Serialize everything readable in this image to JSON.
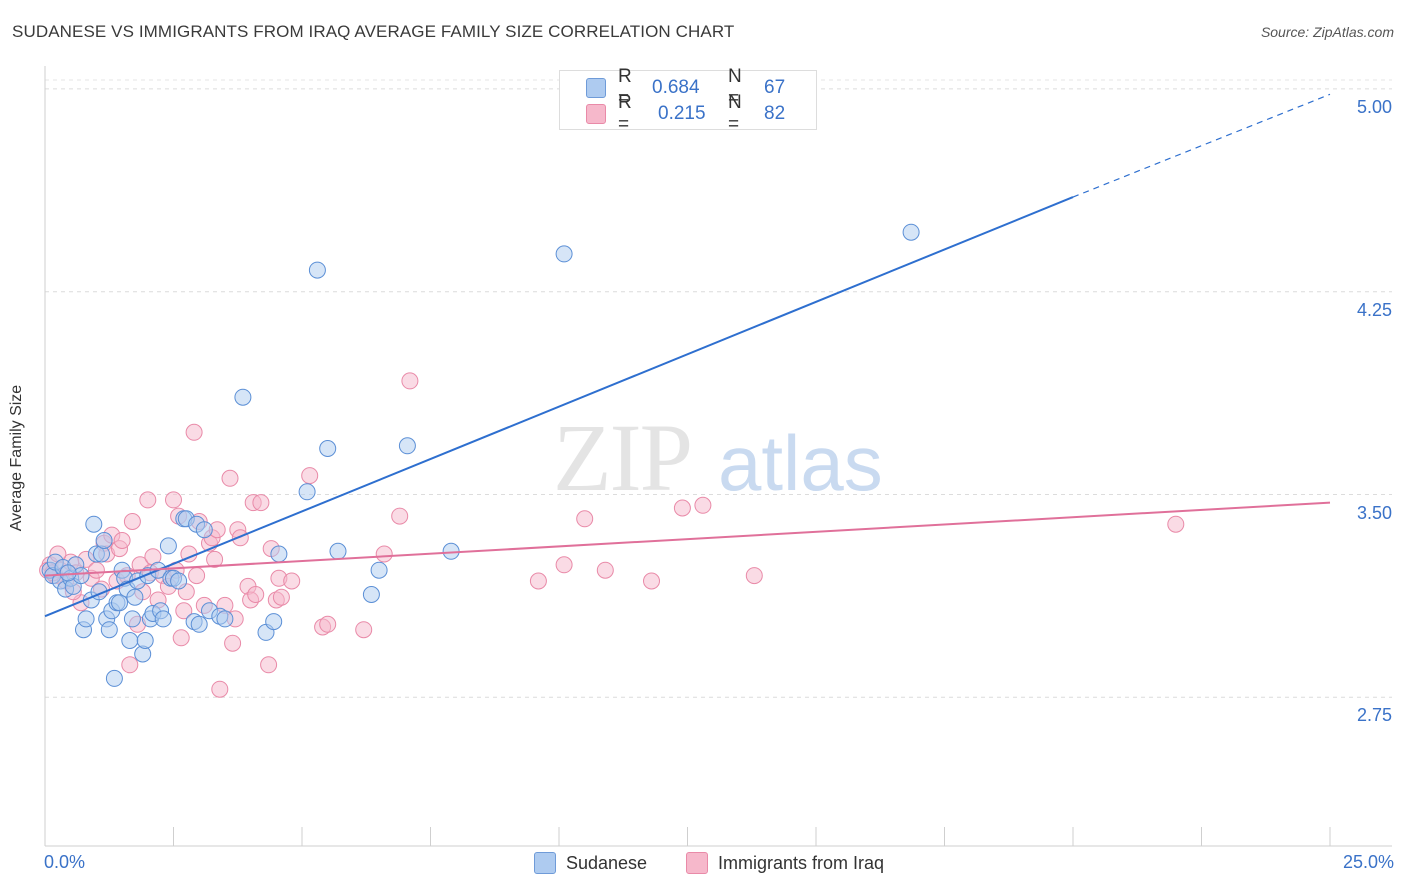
{
  "title": "SUDANESE VS IMMIGRANTS FROM IRAQ AVERAGE FAMILY SIZE CORRELATION CHART",
  "source": "Source: ZipAtlas.com",
  "legend_top": {
    "rows": [
      {
        "r_label": "R =",
        "r_value": "0.684",
        "n_label": "N =",
        "n_value": "67",
        "color": "#aecbf0"
      },
      {
        "r_label": "R =",
        "r_value": "0.215",
        "n_label": "N =",
        "n_value": "82",
        "color": "#f6b8cb"
      }
    ]
  },
  "watermark": {
    "zip": "ZIP",
    "atlas": "atlas"
  },
  "chart_data": {
    "type": "scatter",
    "title": "SUDANESE VS IMMIGRANTS FROM IRAQ AVERAGE FAMILY SIZE CORRELATION CHART",
    "xlabel": "",
    "ylabel": "Average Family Size",
    "xlim": [
      0,
      25
    ],
    "ylim": [
      2.2,
      5.07
    ],
    "x_tick_labels": [
      "0.0%",
      "25.0%"
    ],
    "y_ticks": [
      2.75,
      3.5,
      4.25,
      5.0
    ],
    "y_tick_labels": [
      "2.75",
      "3.50",
      "4.25",
      "5.00"
    ],
    "grid": "horizontal dashed",
    "legend_position": "top-center",
    "series": [
      {
        "name": "Sudanese",
        "color": "#5b8fd6",
        "fill": "#aecbf0",
        "trend": {
          "x0": 0,
          "y0": 3.05,
          "x1": 20,
          "y1": 4.6,
          "dash_to_x": 25,
          "dash_to_y": 4.98,
          "line_color": "#2e6fcf"
        },
        "points": [
          [
            0.1,
            3.22
          ],
          [
            0.15,
            3.2
          ],
          [
            0.2,
            3.25
          ],
          [
            0.3,
            3.18
          ],
          [
            0.35,
            3.23
          ],
          [
            0.4,
            3.15
          ],
          [
            0.5,
            3.19
          ],
          [
            0.55,
            3.16
          ],
          [
            0.6,
            3.24
          ],
          [
            0.7,
            3.2
          ],
          [
            0.75,
            3.0
          ],
          [
            0.8,
            3.04
          ],
          [
            0.9,
            3.11
          ],
          [
            0.95,
            3.39
          ],
          [
            1.0,
            3.28
          ],
          [
            1.05,
            3.14
          ],
          [
            1.1,
            3.28
          ],
          [
            1.2,
            3.04
          ],
          [
            1.25,
            3.0
          ],
          [
            1.3,
            3.07
          ],
          [
            1.35,
            2.82
          ],
          [
            1.4,
            3.1
          ],
          [
            1.45,
            3.1
          ],
          [
            1.5,
            3.22
          ],
          [
            1.55,
            3.19
          ],
          [
            1.6,
            3.15
          ],
          [
            1.65,
            2.96
          ],
          [
            1.7,
            3.04
          ],
          [
            1.75,
            3.12
          ],
          [
            1.8,
            3.18
          ],
          [
            1.9,
            2.91
          ],
          [
            1.95,
            2.96
          ],
          [
            2.0,
            3.2
          ],
          [
            2.05,
            3.04
          ],
          [
            2.1,
            3.06
          ],
          [
            2.2,
            3.22
          ],
          [
            2.25,
            3.07
          ],
          [
            2.3,
            3.04
          ],
          [
            2.4,
            3.31
          ],
          [
            2.45,
            3.19
          ],
          [
            2.5,
            3.19
          ],
          [
            2.6,
            3.18
          ],
          [
            2.7,
            3.41
          ],
          [
            2.75,
            3.41
          ],
          [
            2.9,
            3.03
          ],
          [
            2.95,
            3.39
          ],
          [
            3.1,
            3.37
          ],
          [
            3.2,
            3.07
          ],
          [
            3.4,
            3.05
          ],
          [
            3.5,
            3.04
          ],
          [
            3.85,
            3.86
          ],
          [
            4.3,
            2.99
          ],
          [
            4.45,
            3.03
          ],
          [
            4.55,
            3.28
          ],
          [
            5.1,
            3.51
          ],
          [
            5.3,
            4.33
          ],
          [
            5.5,
            3.67
          ],
          [
            5.7,
            3.29
          ],
          [
            6.35,
            3.13
          ],
          [
            6.5,
            3.22
          ],
          [
            7.05,
            3.68
          ],
          [
            7.9,
            3.29
          ],
          [
            10.1,
            4.39
          ],
          [
            16.85,
            4.47
          ],
          [
            3.0,
            3.02
          ],
          [
            1.15,
            3.33
          ],
          [
            0.45,
            3.21
          ]
        ]
      },
      {
        "name": "Immigrants from Iraq",
        "color": "#e98aa8",
        "fill": "#f6b8cb",
        "trend": {
          "x0": 0,
          "y0": 3.2,
          "x1": 25,
          "y1": 3.47,
          "line_color": "#e0709a"
        },
        "points": [
          [
            0.1,
            3.24
          ],
          [
            0.2,
            3.2
          ],
          [
            0.3,
            3.22
          ],
          [
            0.4,
            3.18
          ],
          [
            0.5,
            3.25
          ],
          [
            0.6,
            3.21
          ],
          [
            0.7,
            3.1
          ],
          [
            0.8,
            3.26
          ],
          [
            0.9,
            3.19
          ],
          [
            1.0,
            3.22
          ],
          [
            1.1,
            3.15
          ],
          [
            1.15,
            3.32
          ],
          [
            1.2,
            3.28
          ],
          [
            1.3,
            3.35
          ],
          [
            1.4,
            3.18
          ],
          [
            1.45,
            3.3
          ],
          [
            1.5,
            3.33
          ],
          [
            1.6,
            3.2
          ],
          [
            1.65,
            2.87
          ],
          [
            1.7,
            3.4
          ],
          [
            1.8,
            3.02
          ],
          [
            1.85,
            3.24
          ],
          [
            1.9,
            3.14
          ],
          [
            2.0,
            3.48
          ],
          [
            2.05,
            3.21
          ],
          [
            2.1,
            3.27
          ],
          [
            2.2,
            3.11
          ],
          [
            2.3,
            3.2
          ],
          [
            2.4,
            3.16
          ],
          [
            2.5,
            3.48
          ],
          [
            2.55,
            3.22
          ],
          [
            2.6,
            3.42
          ],
          [
            2.65,
            2.97
          ],
          [
            2.7,
            3.07
          ],
          [
            2.75,
            3.14
          ],
          [
            2.8,
            3.28
          ],
          [
            2.9,
            3.73
          ],
          [
            2.95,
            3.2
          ],
          [
            3.0,
            3.4
          ],
          [
            3.1,
            3.09
          ],
          [
            3.2,
            3.32
          ],
          [
            3.25,
            3.34
          ],
          [
            3.3,
            3.26
          ],
          [
            3.35,
            3.37
          ],
          [
            3.4,
            2.78
          ],
          [
            3.5,
            3.09
          ],
          [
            3.6,
            3.56
          ],
          [
            3.65,
            2.95
          ],
          [
            3.7,
            3.04
          ],
          [
            3.75,
            3.37
          ],
          [
            3.8,
            3.34
          ],
          [
            3.95,
            3.16
          ],
          [
            4.0,
            3.11
          ],
          [
            4.05,
            3.47
          ],
          [
            4.1,
            3.13
          ],
          [
            4.2,
            3.47
          ],
          [
            4.35,
            2.87
          ],
          [
            4.4,
            3.3
          ],
          [
            4.5,
            3.11
          ],
          [
            4.55,
            3.19
          ],
          [
            4.6,
            3.12
          ],
          [
            4.8,
            3.18
          ],
          [
            5.15,
            3.57
          ],
          [
            5.4,
            3.01
          ],
          [
            5.5,
            3.02
          ],
          [
            6.2,
            3.0
          ],
          [
            6.6,
            3.28
          ],
          [
            6.9,
            3.42
          ],
          [
            7.1,
            3.92
          ],
          [
            9.6,
            3.18
          ],
          [
            10.1,
            3.24
          ],
          [
            10.5,
            3.41
          ],
          [
            10.9,
            3.22
          ],
          [
            11.8,
            3.18
          ],
          [
            12.4,
            3.45
          ],
          [
            12.8,
            3.46
          ],
          [
            13.8,
            3.2
          ],
          [
            22.0,
            3.39
          ],
          [
            0.25,
            3.28
          ],
          [
            0.55,
            3.14
          ],
          [
            0.05,
            3.22
          ],
          [
            0.15,
            3.21
          ]
        ]
      }
    ]
  },
  "bottom_legend": {
    "items": [
      {
        "label": "Sudanese",
        "color": "#aecbf0"
      },
      {
        "label": "Immigrants from Iraq",
        "color": "#f6b8cb"
      }
    ]
  }
}
